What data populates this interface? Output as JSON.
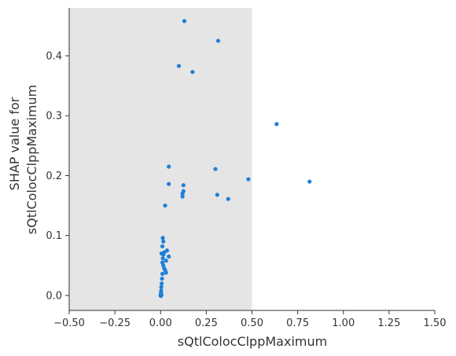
{
  "chart_data": {
    "type": "scatter",
    "xlabel": "sQtlColocClppMaximum",
    "ylabel_line1": "SHAP value for",
    "ylabel_line2": "sQtlColocClppMaximum",
    "xlim": [
      -0.5,
      1.5
    ],
    "ylim": [
      -0.025,
      0.48
    ],
    "x_ticks": [
      -0.5,
      -0.25,
      0.0,
      0.25,
      0.5,
      0.75,
      1.0,
      1.25,
      1.5
    ],
    "x_tick_labels": [
      "−0.50",
      "−0.25",
      "0.00",
      "0.25",
      "0.50",
      "0.75",
      "1.00",
      "1.25",
      "1.50"
    ],
    "y_ticks": [
      0.0,
      0.1,
      0.2,
      0.3,
      0.4
    ],
    "y_tick_labels": [
      "0.0",
      "0.1",
      "0.2",
      "0.3",
      "0.4"
    ],
    "shaded_region": [
      -0.5,
      0.5
    ],
    "colors": {
      "point": "#1e7fd8",
      "shade": "#e5e5e5",
      "axis": "#333333"
    },
    "points": [
      [
        0.13,
        0.458
      ],
      [
        0.315,
        0.425
      ],
      [
        0.1,
        0.383
      ],
      [
        0.175,
        0.373
      ],
      [
        0.635,
        0.286
      ],
      [
        0.045,
        0.215
      ],
      [
        0.3,
        0.211
      ],
      [
        0.48,
        0.194
      ],
      [
        0.815,
        0.19
      ],
      [
        0.045,
        0.186
      ],
      [
        0.125,
        0.184
      ],
      [
        0.125,
        0.174
      ],
      [
        0.12,
        0.17
      ],
      [
        0.31,
        0.168
      ],
      [
        0.12,
        0.165
      ],
      [
        0.37,
        0.161
      ],
      [
        0.025,
        0.15
      ],
      [
        0.012,
        0.096
      ],
      [
        0.015,
        0.09
      ],
      [
        0.01,
        0.082
      ],
      [
        0.035,
        0.075
      ],
      [
        0.02,
        0.072
      ],
      [
        0.005,
        0.07
      ],
      [
        0.015,
        0.068
      ],
      [
        0.045,
        0.065
      ],
      [
        0.012,
        0.062
      ],
      [
        0.03,
        0.058
      ],
      [
        0.01,
        0.055
      ],
      [
        0.015,
        0.05
      ],
      [
        0.02,
        0.045
      ],
      [
        0.025,
        0.042
      ],
      [
        0.03,
        0.038
      ],
      [
        0.01,
        0.036
      ],
      [
        0.008,
        0.028
      ],
      [
        0.006,
        0.02
      ],
      [
        0.004,
        0.014
      ],
      [
        0.003,
        0.008
      ],
      [
        0.002,
        0.004
      ],
      [
        0.001,
        0.002
      ],
      [
        0.0,
        0.0
      ],
      [
        0.001,
        -0.001
      ],
      [
        0.003,
        0.0
      ],
      [
        0.005,
        0.001
      ]
    ]
  }
}
